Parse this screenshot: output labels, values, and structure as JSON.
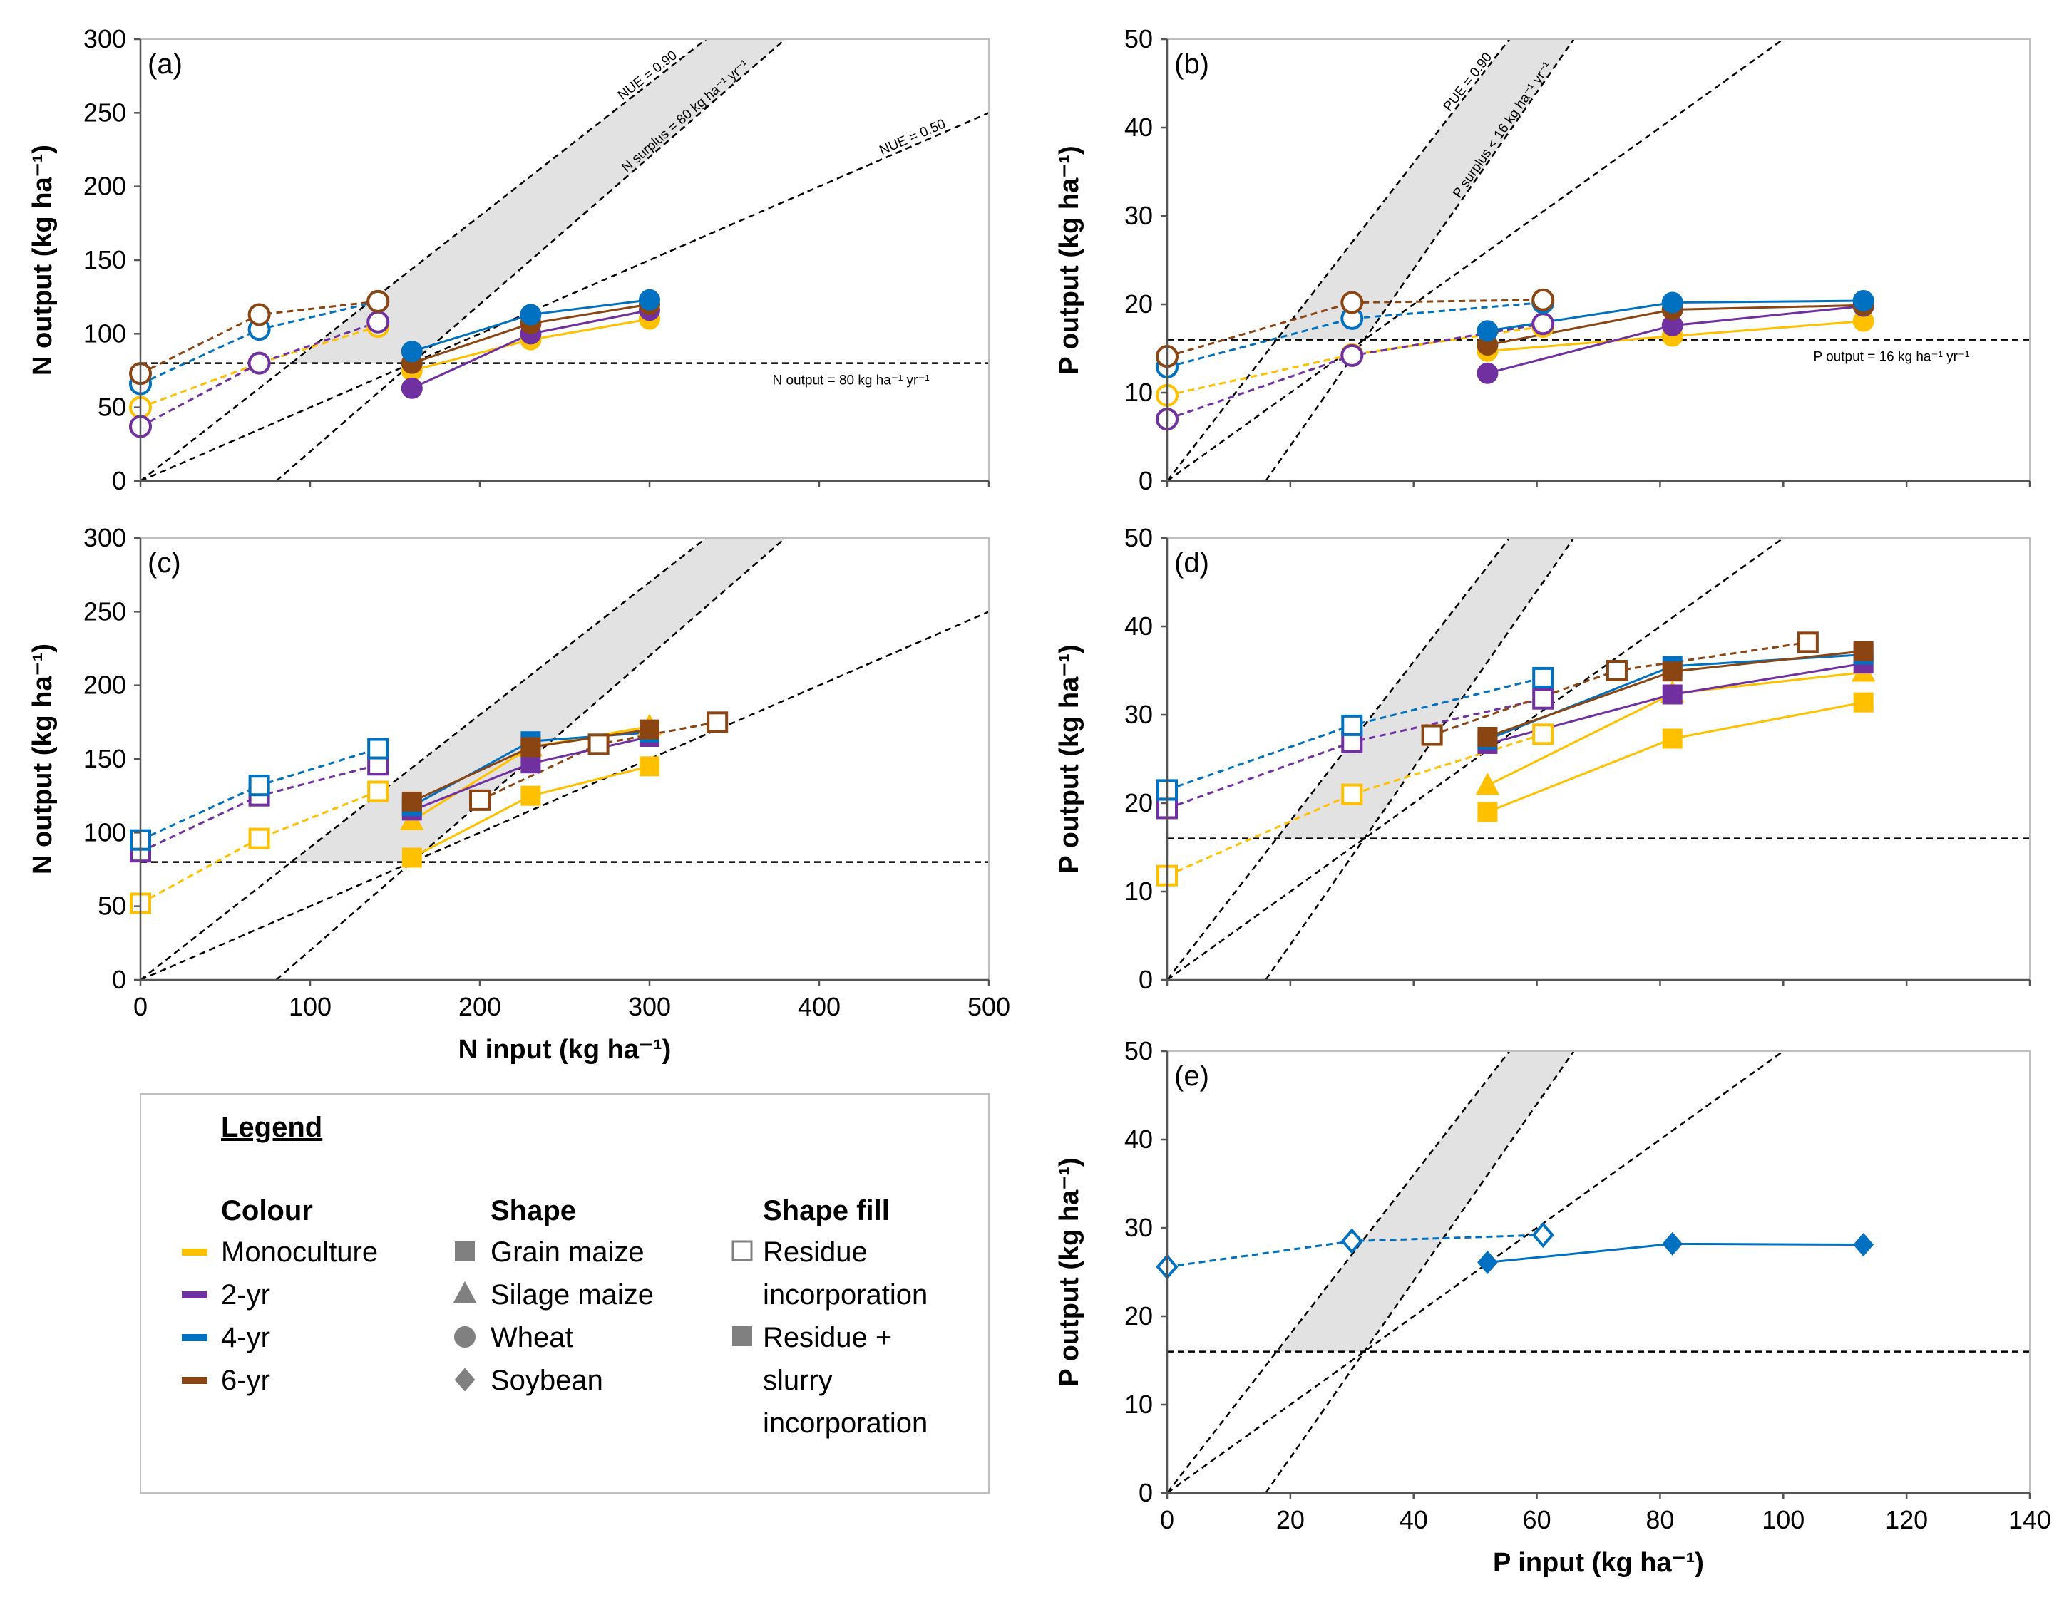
{
  "colors": {
    "mono": "#FFC000",
    "yr2": "#7030A0",
    "yr4": "#0070C0",
    "yr6": "#8B4513",
    "band": "#e2e2e2"
  },
  "chart_data": [
    {
      "id": "a",
      "type": "scatter",
      "panel_label": "(a)",
      "ylabel": "N output (kg ha⁻¹)",
      "xlabel": "",
      "xlim": [
        0,
        500
      ],
      "ylim": [
        0,
        300
      ],
      "xticks": [
        "",
        "",
        "",
        "",
        "",
        ""
      ],
      "xtickvals": [
        0,
        100,
        200,
        300,
        400,
        500
      ],
      "yticks": [
        "0",
        "50",
        "100",
        "150",
        "200",
        "250",
        "300"
      ],
      "ytickvals": [
        0,
        50,
        100,
        150,
        200,
        250,
        300
      ],
      "refs": {
        "nue_hi": 0.9,
        "nue_lo": 0.5,
        "surplus": 80,
        "output": 80
      },
      "annotations": {
        "nue_hi": "NUE = 0.90",
        "surplus": "N surplus = 80 kg ha⁻¹ yr⁻¹",
        "nue_lo": "NUE = 0.50",
        "output": "N output = 80 kg ha⁻¹ yr⁻¹"
      },
      "series": [
        {
          "name": "Monoculture wheat residue",
          "color": "mono",
          "shape": "circle",
          "fill": "open",
          "line": "dashed",
          "x": [
            0,
            70,
            140
          ],
          "y": [
            50,
            80,
            105
          ]
        },
        {
          "name": "2-yr wheat residue",
          "color": "yr2",
          "shape": "circle",
          "fill": "open",
          "line": "dashed",
          "x": [
            0,
            70,
            140
          ],
          "y": [
            37,
            80,
            108
          ]
        },
        {
          "name": "4-yr wheat residue",
          "color": "yr4",
          "shape": "circle",
          "fill": "open",
          "line": "dashed",
          "x": [
            0,
            70,
            140
          ],
          "y": [
            66,
            103,
            122
          ]
        },
        {
          "name": "6-yr wheat residue",
          "color": "yr6",
          "shape": "circle",
          "fill": "open",
          "line": "dashed",
          "x": [
            0,
            70,
            140
          ],
          "y": [
            73,
            113,
            122
          ]
        },
        {
          "name": "Monoculture wheat slurry",
          "color": "mono",
          "shape": "circle",
          "fill": "filled",
          "line": "solid",
          "x": [
            160,
            230,
            300
          ],
          "y": [
            75,
            96,
            110
          ]
        },
        {
          "name": "2-yr wheat slurry",
          "color": "yr2",
          "shape": "circle",
          "fill": "filled",
          "line": "solid",
          "x": [
            160,
            230,
            300
          ],
          "y": [
            63,
            100,
            116
          ]
        },
        {
          "name": "6-yr wheat slurry",
          "color": "yr6",
          "shape": "circle",
          "fill": "filled",
          "line": "solid",
          "x": [
            160,
            230,
            300
          ],
          "y": [
            80,
            107,
            120
          ]
        },
        {
          "name": "4-yr wheat slurry",
          "color": "yr4",
          "shape": "circle",
          "fill": "filled",
          "line": "solid",
          "x": [
            160,
            230,
            300
          ],
          "y": [
            88,
            113,
            123
          ]
        }
      ]
    },
    {
      "id": "b",
      "type": "scatter",
      "panel_label": "(b)",
      "ylabel": "P output (kg ha⁻¹)",
      "xlabel": "",
      "xlim": [
        0,
        140
      ],
      "ylim": [
        0,
        50
      ],
      "xticks": [
        "",
        "",
        "",
        "",
        "",
        "",
        "",
        ""
      ],
      "xtickvals": [
        0,
        20,
        40,
        60,
        80,
        100,
        120,
        140
      ],
      "yticks": [
        "0",
        "10",
        "20",
        "30",
        "40",
        "50"
      ],
      "ytickvals": [
        0,
        10,
        20,
        30,
        40,
        50
      ],
      "refs": {
        "nue_hi": 0.9,
        "nue_lo": 0.5,
        "surplus": 16,
        "output": 16
      },
      "annotations": {
        "nue_hi": "PUE = 0.90",
        "surplus": "P surplus < 16 kg ha⁻¹ yr⁻¹",
        "nue_lo": "PUE = 0.50",
        "output": "P output = 16 kg ha⁻¹ yr⁻¹"
      },
      "series": [
        {
          "name": "Monoculture wheat residue",
          "color": "mono",
          "shape": "circle",
          "fill": "open",
          "line": "dashed",
          "x": [
            0,
            30,
            61
          ],
          "y": [
            9.7,
            14.3,
            17.5
          ]
        },
        {
          "name": "2-yr wheat residue",
          "color": "yr2",
          "shape": "circle",
          "fill": "open",
          "line": "dashed",
          "x": [
            0,
            30,
            61
          ],
          "y": [
            7,
            14.2,
            17.8
          ]
        },
        {
          "name": "4-yr wheat residue",
          "color": "yr4",
          "shape": "circle",
          "fill": "open",
          "line": "dashed",
          "x": [
            0,
            30,
            61
          ],
          "y": [
            12.9,
            18.4,
            20.2
          ]
        },
        {
          "name": "6-yr wheat residue",
          "color": "yr6",
          "shape": "circle",
          "fill": "open",
          "line": "dashed",
          "x": [
            0,
            30,
            61
          ],
          "y": [
            14.1,
            20.2,
            20.5
          ]
        },
        {
          "name": "Monoculture wheat slurry",
          "color": "mono",
          "shape": "circle",
          "fill": "filled",
          "line": "solid",
          "x": [
            52,
            82,
            113
          ],
          "y": [
            14.7,
            16.4,
            18.1
          ]
        },
        {
          "name": "2-yr wheat slurry",
          "color": "yr2",
          "shape": "circle",
          "fill": "filled",
          "line": "solid",
          "x": [
            52,
            82,
            113
          ],
          "y": [
            12.2,
            17.6,
            19.8
          ]
        },
        {
          "name": "6-yr wheat slurry",
          "color": "yr6",
          "shape": "circle",
          "fill": "filled",
          "line": "solid",
          "x": [
            52,
            82,
            113
          ],
          "y": [
            15.4,
            19.4,
            19.9
          ]
        },
        {
          "name": "4-yr wheat slurry",
          "color": "yr4",
          "shape": "circle",
          "fill": "filled",
          "line": "solid",
          "x": [
            52,
            82,
            113
          ],
          "y": [
            17,
            20.2,
            20.4
          ]
        }
      ]
    },
    {
      "id": "c",
      "type": "scatter",
      "panel_label": "(c)",
      "ylabel": "N output (kg ha⁻¹)",
      "xlabel": "N input (kg ha⁻¹)",
      "xlim": [
        0,
        500
      ],
      "ylim": [
        0,
        300
      ],
      "xticks": [
        "0",
        "100",
        "200",
        "300",
        "400",
        "500"
      ],
      "xtickvals": [
        0,
        100,
        200,
        300,
        400,
        500
      ],
      "yticks": [
        "0",
        "50",
        "100",
        "150",
        "200",
        "250",
        "300"
      ],
      "ytickvals": [
        0,
        50,
        100,
        150,
        200,
        250,
        300
      ],
      "refs": {
        "nue_hi": 0.9,
        "nue_lo": 0.5,
        "surplus": 80,
        "output": 80
      },
      "series": [
        {
          "name": "Monoculture grain maize residue",
          "color": "mono",
          "shape": "square",
          "fill": "open",
          "line": "dashed",
          "x": [
            0,
            70,
            140
          ],
          "y": [
            52,
            96,
            128
          ]
        },
        {
          "name": "2-yr grain maize residue",
          "color": "yr2",
          "shape": "square",
          "fill": "open",
          "line": "dashed",
          "x": [
            0,
            70,
            140
          ],
          "y": [
            87,
            125,
            146
          ]
        },
        {
          "name": "4-yr grain maize residue",
          "color": "yr4",
          "shape": "square",
          "fill": "open",
          "line": "dashed",
          "x": [
            0,
            70,
            140
          ],
          "y": [
            95,
            132,
            157
          ]
        },
        {
          "name": "6-yr grain maize residue",
          "color": "yr6",
          "shape": "square",
          "fill": "open",
          "line": "dashed",
          "x": [
            200,
            270,
            340
          ],
          "y": [
            122,
            160,
            175
          ]
        },
        {
          "name": "Monoculture grain maize slurry",
          "color": "mono",
          "shape": "square",
          "fill": "filled",
          "line": "solid",
          "x": [
            160,
            230,
            300
          ],
          "y": [
            83,
            125,
            145
          ]
        },
        {
          "name": "Monoculture silage maize slurry",
          "color": "mono",
          "shape": "triangle",
          "fill": "filled",
          "line": "solid",
          "x": [
            160,
            230,
            300
          ],
          "y": [
            108,
            158,
            172
          ]
        },
        {
          "name": "2-yr grain maize slurry",
          "color": "yr2",
          "shape": "square",
          "fill": "filled",
          "line": "solid",
          "x": [
            160,
            230,
            300
          ],
          "y": [
            115,
            147,
            165
          ]
        },
        {
          "name": "4-yr grain maize slurry",
          "color": "yr4",
          "shape": "square",
          "fill": "filled",
          "line": "solid",
          "x": [
            160,
            230,
            300
          ],
          "y": [
            118,
            162,
            168
          ]
        },
        {
          "name": "6-yr grain maize slurry",
          "color": "yr6",
          "shape": "square",
          "fill": "filled",
          "line": "solid",
          "x": [
            160,
            230,
            300
          ],
          "y": [
            121,
            158,
            170
          ]
        }
      ]
    },
    {
      "id": "d",
      "type": "scatter",
      "panel_label": "(d)",
      "ylabel": "P output (kg ha⁻¹)",
      "xlabel": "",
      "xlim": [
        0,
        140
      ],
      "ylim": [
        0,
        50
      ],
      "xticks": [
        "",
        "",
        "",
        "",
        "",
        "",
        "",
        ""
      ],
      "xtickvals": [
        0,
        20,
        40,
        60,
        80,
        100,
        120,
        140
      ],
      "yticks": [
        "0",
        "10",
        "20",
        "30",
        "40",
        "50"
      ],
      "ytickvals": [
        0,
        10,
        20,
        30,
        40,
        50
      ],
      "refs": {
        "nue_hi": 0.9,
        "nue_lo": 0.5,
        "surplus": 16,
        "output": 16
      },
      "series": [
        {
          "name": "Monoculture grain maize residue",
          "color": "mono",
          "shape": "square",
          "fill": "open",
          "line": "dashed",
          "x": [
            0,
            30,
            61
          ],
          "y": [
            11.8,
            21,
            27.8
          ]
        },
        {
          "name": "2-yr grain maize residue",
          "color": "yr2",
          "shape": "square",
          "fill": "open",
          "line": "dashed",
          "x": [
            0,
            30,
            61
          ],
          "y": [
            19.4,
            26.9,
            31.8
          ]
        },
        {
          "name": "4-yr grain maize residue",
          "color": "yr4",
          "shape": "square",
          "fill": "open",
          "line": "dashed",
          "x": [
            0,
            30,
            61
          ],
          "y": [
            21.5,
            28.8,
            34.2
          ]
        },
        {
          "name": "6-yr grain maize residue",
          "color": "yr6",
          "shape": "square",
          "fill": "open",
          "line": "dashed",
          "x": [
            43,
            73,
            104
          ],
          "y": [
            27.7,
            35,
            38.2
          ]
        },
        {
          "name": "Monoculture grain maize slurry",
          "color": "mono",
          "shape": "square",
          "fill": "filled",
          "line": "solid",
          "x": [
            52,
            82,
            113
          ],
          "y": [
            19,
            27.3,
            31.4
          ]
        },
        {
          "name": "Monoculture silage maize slurry",
          "color": "mono",
          "shape": "triangle",
          "fill": "filled",
          "line": "solid",
          "x": [
            52,
            82,
            113
          ],
          "y": [
            22,
            32.4,
            34.8
          ]
        },
        {
          "name": "2-yr grain maize slurry",
          "color": "yr2",
          "shape": "square",
          "fill": "filled",
          "line": "solid",
          "x": [
            52,
            82,
            113
          ],
          "y": [
            26.7,
            32.3,
            35.8
          ]
        },
        {
          "name": "4-yr grain maize slurry",
          "color": "yr4",
          "shape": "square",
          "fill": "filled",
          "line": "solid",
          "x": [
            52,
            82,
            113
          ],
          "y": [
            27.2,
            35.5,
            36.8
          ]
        },
        {
          "name": "6-yr grain maize slurry",
          "color": "yr6",
          "shape": "square",
          "fill": "filled",
          "line": "solid",
          "x": [
            52,
            82,
            113
          ],
          "y": [
            27.5,
            34.9,
            37.2
          ]
        }
      ]
    },
    {
      "id": "e",
      "type": "scatter",
      "panel_label": "(e)",
      "ylabel": "P output (kg ha⁻¹)",
      "xlabel": "P input (kg ha⁻¹)",
      "xlim": [
        0,
        140
      ],
      "ylim": [
        0,
        50
      ],
      "xticks": [
        "0",
        "20",
        "40",
        "60",
        "80",
        "100",
        "120",
        "140"
      ],
      "xtickvals": [
        0,
        20,
        40,
        60,
        80,
        100,
        120,
        140
      ],
      "yticks": [
        "0",
        "10",
        "20",
        "30",
        "40",
        "50"
      ],
      "ytickvals": [
        0,
        10,
        20,
        30,
        40,
        50
      ],
      "refs": {
        "nue_hi": 0.9,
        "nue_lo": 0.5,
        "surplus": 16,
        "output": 16
      },
      "series": [
        {
          "name": "4-yr soybean residue",
          "color": "yr4",
          "shape": "diamond",
          "fill": "open",
          "line": "dashed",
          "x": [
            0,
            30,
            61
          ],
          "y": [
            25.6,
            28.5,
            29.2
          ]
        },
        {
          "name": "4-yr soybean slurry",
          "color": "yr4",
          "shape": "diamond",
          "fill": "filled",
          "line": "solid",
          "x": [
            52,
            82,
            113
          ],
          "y": [
            26.1,
            28.2,
            28.1
          ]
        }
      ]
    }
  ],
  "legend": {
    "title": "Legend",
    "colour_head": "Colour",
    "colour_items": [
      {
        "label": "Monoculture",
        "color": "mono"
      },
      {
        "label": "2-yr",
        "color": "yr2"
      },
      {
        "label": "4-yr",
        "color": "yr4"
      },
      {
        "label": "6-yr",
        "color": "yr6"
      }
    ],
    "shape_head": "Shape",
    "shape_items": [
      {
        "label": "Grain maize",
        "shape": "square"
      },
      {
        "label": "Silage maize",
        "shape": "triangle"
      },
      {
        "label": "Wheat",
        "shape": "circle"
      },
      {
        "label": "Soybean",
        "shape": "diamond"
      }
    ],
    "fill_head": "Shape fill",
    "fill_items": [
      {
        "lines": [
          "Residue",
          "incorporation"
        ],
        "fill": "open"
      },
      {
        "lines": [
          "Residue +",
          "slurry",
          "incorporation"
        ],
        "fill": "filled"
      }
    ]
  }
}
